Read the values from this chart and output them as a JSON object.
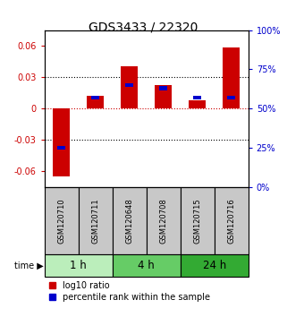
{
  "title": "GDS3433 / 22320",
  "samples": [
    "GSM120710",
    "GSM120711",
    "GSM120648",
    "GSM120708",
    "GSM120715",
    "GSM120716"
  ],
  "log10_ratio": [
    -0.065,
    0.012,
    0.04,
    0.022,
    0.008,
    0.058
  ],
  "percentile_rank": [
    0.25,
    0.57,
    0.65,
    0.63,
    0.57,
    0.57
  ],
  "time_groups": [
    {
      "label": "1 h",
      "start": 0,
      "end": 2,
      "color": "#bbeebb"
    },
    {
      "label": "4 h",
      "start": 2,
      "end": 4,
      "color": "#66cc66"
    },
    {
      "label": "24 h",
      "start": 4,
      "end": 6,
      "color": "#33aa33"
    }
  ],
  "ylim": [
    -0.075,
    0.075
  ],
  "yticks_left": [
    -0.06,
    -0.03,
    0,
    0.03,
    0.06
  ],
  "yticks_right": [
    0,
    25,
    50,
    75,
    100
  ],
  "bar_color_red": "#cc0000",
  "bar_color_blue": "#0000cc",
  "bar_width": 0.5,
  "percentile_bar_width": 0.25,
  "percentile_bar_height": 0.004,
  "background_label": "#c8c8c8",
  "title_fontsize": 10,
  "tick_fontsize": 7,
  "legend_fontsize": 7,
  "time_label_fontsize": 8.5
}
